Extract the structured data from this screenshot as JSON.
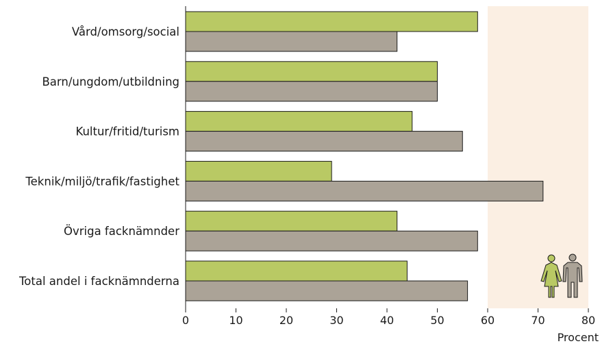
{
  "chart_data": {
    "type": "bar",
    "orientation": "horizontal",
    "categories": [
      "Vård/omsorg/social",
      "Barn/ungdom/utbildning",
      "Kultur/fritid/turism",
      "Teknik/miljö/trafik/fastighet",
      "Övriga facknämnder",
      "Total andel i facknämnderna"
    ],
    "series": [
      {
        "values": [
          58,
          50,
          45,
          29,
          42,
          44
        ]
      },
      {
        "values": [
          42,
          50,
          55,
          71,
          58,
          56
        ]
      }
    ],
    "colors": {
      "women": "#b9c964",
      "men": "#aba397",
      "highlight_band": "#fbefe3"
    },
    "highlight_range": [
      60,
      80
    ],
    "xlim": [
      0,
      80
    ],
    "xticks": [
      "0",
      "10",
      "20",
      "30",
      "40",
      "50",
      "60",
      "70",
      "80"
    ],
    "xlabel": "Procent",
    "ylabel": "",
    "title": "",
    "grid": false,
    "icons": [
      "woman-icon",
      "man-icon"
    ]
  }
}
